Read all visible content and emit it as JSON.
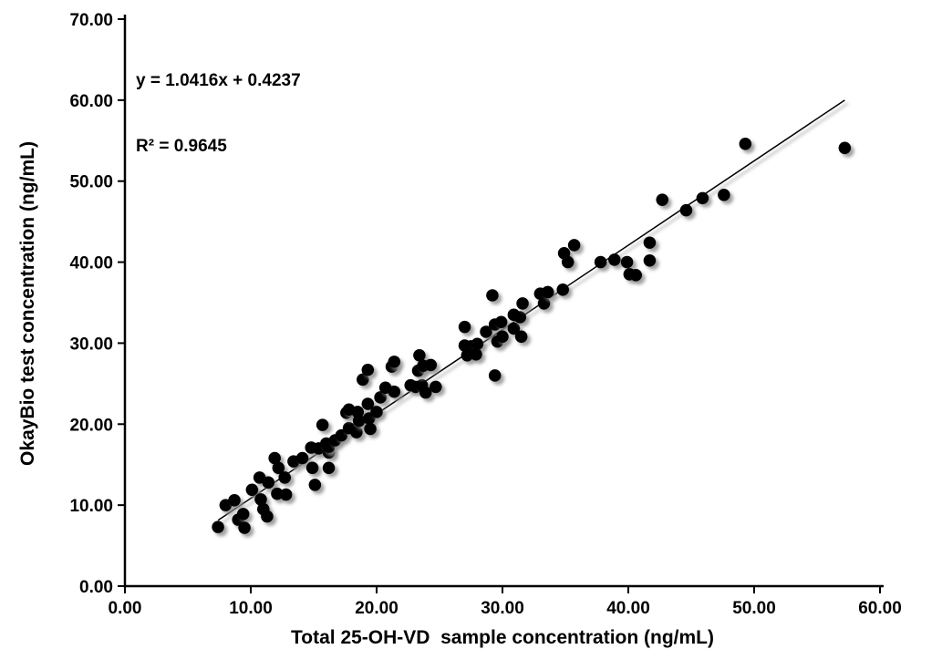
{
  "colors": {
    "background": "#ffffff",
    "axis": "#000000",
    "point": "#000000",
    "trendline": "#000000",
    "shadow": "#8a8a8a"
  },
  "chart_data": {
    "type": "scatter",
    "title": "",
    "xlabel": "Total 25-OH-VD  sample concentration (ng/mL)",
    "ylabel": "OkayBio test concentration (ng/mL)",
    "xlim": [
      0,
      60
    ],
    "ylim": [
      0,
      70
    ],
    "x_ticks": [
      0,
      10,
      20,
      30,
      40,
      50,
      60
    ],
    "x_tick_labels": [
      "0.00",
      "10.00",
      "20.00",
      "30.00",
      "40.00",
      "50.00",
      "60.00"
    ],
    "y_ticks": [
      0,
      10,
      20,
      30,
      40,
      50,
      60,
      70
    ],
    "y_tick_labels": [
      "0.00",
      "10.00",
      "20.00",
      "30.00",
      "40.00",
      "50.00",
      "60.00",
      "70.00"
    ],
    "grid": false,
    "legend": "none",
    "annotation": {
      "equation": "y = 1.0416x + 0.4237",
      "r_squared": "R² = 0.9645"
    },
    "trendline": {
      "slope": 1.0416,
      "intercept": 0.4237,
      "x_start": 7.4,
      "x_end": 57.2
    },
    "points": [
      [
        7.4,
        7.3
      ],
      [
        8.0,
        10.0
      ],
      [
        8.7,
        10.6
      ],
      [
        9.0,
        8.2
      ],
      [
        9.4,
        8.9
      ],
      [
        9.5,
        7.2
      ],
      [
        10.1,
        11.9
      ],
      [
        10.7,
        13.4
      ],
      [
        10.8,
        10.7
      ],
      [
        11.0,
        9.5
      ],
      [
        11.3,
        8.6
      ],
      [
        11.4,
        12.8
      ],
      [
        11.9,
        15.8
      ],
      [
        12.2,
        14.6
      ],
      [
        12.1,
        11.4
      ],
      [
        12.7,
        13.4
      ],
      [
        12.8,
        11.3
      ],
      [
        13.4,
        15.4
      ],
      [
        14.1,
        15.8
      ],
      [
        14.8,
        17.1
      ],
      [
        14.9,
        14.6
      ],
      [
        15.1,
        12.5
      ],
      [
        15.4,
        17.0
      ],
      [
        15.7,
        19.9
      ],
      [
        16.0,
        17.6
      ],
      [
        16.2,
        16.5
      ],
      [
        16.2,
        14.6
      ],
      [
        16.2,
        17.2
      ],
      [
        16.7,
        18.0
      ],
      [
        17.2,
        18.6
      ],
      [
        17.8,
        19.5
      ],
      [
        18.4,
        19.0
      ],
      [
        17.6,
        21.4
      ],
      [
        17.8,
        21.8
      ],
      [
        18.5,
        21.5
      ],
      [
        18.6,
        20.4
      ],
      [
        18.9,
        25.5
      ],
      [
        19.3,
        26.7
      ],
      [
        19.3,
        22.5
      ],
      [
        19.4,
        20.7
      ],
      [
        19.5,
        19.4
      ],
      [
        20.0,
        21.5
      ],
      [
        20.3,
        23.3
      ],
      [
        20.7,
        24.5
      ],
      [
        21.2,
        27.1
      ],
      [
        21.4,
        24.0
      ],
      [
        21.4,
        27.7
      ],
      [
        22.7,
        24.8
      ],
      [
        23.1,
        24.6
      ],
      [
        23.6,
        24.8
      ],
      [
        23.3,
        26.6
      ],
      [
        23.9,
        23.9
      ],
      [
        24.7,
        24.6
      ],
      [
        23.4,
        28.5
      ],
      [
        23.7,
        27.2
      ],
      [
        24.3,
        27.3
      ],
      [
        27.0,
        32.0
      ],
      [
        27.0,
        29.7
      ],
      [
        27.5,
        29.6
      ],
      [
        28.0,
        29.9
      ],
      [
        27.2,
        28.5
      ],
      [
        27.9,
        28.6
      ],
      [
        28.7,
        31.4
      ],
      [
        29.2,
        35.9
      ],
      [
        29.4,
        32.3
      ],
      [
        29.4,
        26.0
      ],
      [
        29.6,
        30.2
      ],
      [
        29.9,
        32.6
      ],
      [
        30.0,
        30.8
      ],
      [
        30.9,
        33.5
      ],
      [
        30.9,
        31.8
      ],
      [
        31.4,
        33.2
      ],
      [
        31.5,
        30.8
      ],
      [
        31.6,
        34.9
      ],
      [
        33.0,
        36.1
      ],
      [
        33.3,
        34.9
      ],
      [
        33.6,
        36.3
      ],
      [
        34.8,
        36.6
      ],
      [
        34.9,
        41.1
      ],
      [
        35.2,
        40.0
      ],
      [
        35.7,
        42.1
      ],
      [
        37.8,
        40.0
      ],
      [
        38.9,
        40.3
      ],
      [
        39.9,
        40.0
      ],
      [
        40.1,
        38.5
      ],
      [
        40.6,
        38.4
      ],
      [
        41.7,
        42.4
      ],
      [
        41.7,
        40.2
      ],
      [
        42.7,
        47.7
      ],
      [
        44.6,
        46.4
      ],
      [
        45.9,
        47.9
      ],
      [
        47.6,
        48.3
      ],
      [
        49.3,
        54.6
      ],
      [
        57.2,
        54.1
      ]
    ]
  }
}
